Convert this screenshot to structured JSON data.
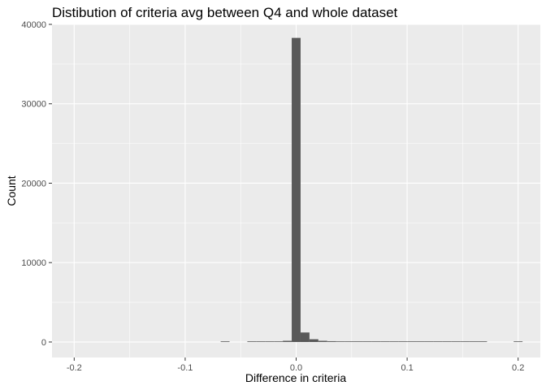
{
  "chart_data": {
    "type": "bar",
    "title": "Distibution of criteria avg between Q4 and whole dataset",
    "xlabel": "Difference in criteria",
    "ylabel": "Count",
    "xlim": [
      -0.22,
      0.22
    ],
    "ylim": [
      -1950,
      40000
    ],
    "x_ticks": [
      -0.2,
      -0.1,
      0.0,
      0.1,
      0.2
    ],
    "x_tick_labels": [
      "-0.2",
      "-0.1",
      "0.0",
      "0.1",
      "0.2"
    ],
    "y_ticks": [
      0,
      10000,
      20000,
      30000,
      40000
    ],
    "y_tick_labels": [
      "0",
      "10000",
      "20000",
      "30000",
      "40000"
    ],
    "grid": true,
    "legend": "none",
    "bin_width": 0.008,
    "bins": [
      {
        "x0": -0.068,
        "x1": -0.06,
        "count": 80
      },
      {
        "x0": -0.044,
        "x1": -0.036,
        "count": 40
      },
      {
        "x0": -0.036,
        "x1": -0.028,
        "count": 40
      },
      {
        "x0": -0.028,
        "x1": -0.02,
        "count": 60
      },
      {
        "x0": -0.02,
        "x1": -0.012,
        "count": 60
      },
      {
        "x0": -0.012,
        "x1": -0.004,
        "count": 150
      },
      {
        "x0": -0.004,
        "x1": 0.004,
        "count": 38300
      },
      {
        "x0": 0.004,
        "x1": 0.012,
        "count": 1200
      },
      {
        "x0": 0.012,
        "x1": 0.02,
        "count": 350
      },
      {
        "x0": 0.02,
        "x1": 0.028,
        "count": 150
      },
      {
        "x0": 0.028,
        "x1": 0.036,
        "count": 100
      },
      {
        "x0": 0.036,
        "x1": 0.044,
        "count": 60
      },
      {
        "x0": 0.044,
        "x1": 0.052,
        "count": 50
      },
      {
        "x0": 0.052,
        "x1": 0.06,
        "count": 40
      },
      {
        "x0": 0.06,
        "x1": 0.068,
        "count": 40
      },
      {
        "x0": 0.068,
        "x1": 0.076,
        "count": 40
      },
      {
        "x0": 0.076,
        "x1": 0.084,
        "count": 40
      },
      {
        "x0": 0.084,
        "x1": 0.092,
        "count": 40
      },
      {
        "x0": 0.092,
        "x1": 0.1,
        "count": 40
      },
      {
        "x0": 0.1,
        "x1": 0.108,
        "count": 40
      },
      {
        "x0": 0.108,
        "x1": 0.116,
        "count": 40
      },
      {
        "x0": 0.116,
        "x1": 0.124,
        "count": 40
      },
      {
        "x0": 0.124,
        "x1": 0.132,
        "count": 40
      },
      {
        "x0": 0.132,
        "x1": 0.14,
        "count": 40
      },
      {
        "x0": 0.14,
        "x1": 0.148,
        "count": 40
      },
      {
        "x0": 0.148,
        "x1": 0.156,
        "count": 40
      },
      {
        "x0": 0.156,
        "x1": 0.164,
        "count": 40
      },
      {
        "x0": 0.164,
        "x1": 0.172,
        "count": 40
      },
      {
        "x0": 0.196,
        "x1": 0.204,
        "count": 80
      }
    ],
    "colors": {
      "panel_background": "#ebebeb",
      "grid_major": "#ffffff",
      "bar_fill": "#595959",
      "tick_label": "#4d4d4d",
      "tick_mark": "#333333"
    }
  }
}
